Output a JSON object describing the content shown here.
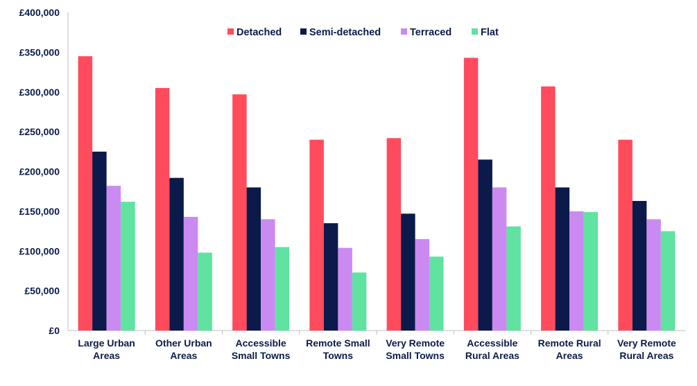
{
  "chart_data": {
    "type": "bar",
    "title": "",
    "xlabel": "",
    "ylabel": "",
    "ylim": [
      0,
      400000
    ],
    "yticks": [
      0,
      50000,
      100000,
      150000,
      200000,
      250000,
      300000,
      350000,
      400000
    ],
    "ytick_labels": [
      "£0",
      "£50,000",
      "£100,000",
      "£150,000",
      "£200,000",
      "£250,000",
      "£300,000",
      "£350,000",
      "£400,000"
    ],
    "grid": false,
    "legend_position": "top",
    "categories": [
      [
        "Large Urban",
        "Areas"
      ],
      [
        "Other Urban",
        "Areas"
      ],
      [
        "Accessible",
        "Small Towns"
      ],
      [
        "Remote Small",
        "Towns"
      ],
      [
        "Very Remote",
        "Small Towns"
      ],
      [
        "Accessible",
        "Rural Areas"
      ],
      [
        "Remote Rural",
        "Areas"
      ],
      [
        "Very Remote",
        "Rural Areas"
      ]
    ],
    "series": [
      {
        "name": "Detached",
        "color": "#ff4b5c",
        "values": [
          345000,
          305000,
          297000,
          240000,
          242000,
          343000,
          307000,
          240000
        ]
      },
      {
        "name": "Semi-detached",
        "color": "#0b1a4a",
        "values": [
          225000,
          192000,
          180000,
          135000,
          147000,
          215000,
          180000,
          163000
        ]
      },
      {
        "name": "Terraced",
        "color": "#cb8af2",
        "values": [
          182000,
          143000,
          140000,
          104000,
          115000,
          180000,
          150000,
          140000
        ]
      },
      {
        "name": "Flat",
        "color": "#60e3a1",
        "values": [
          162000,
          98000,
          105000,
          73000,
          93000,
          131000,
          149000,
          125000
        ]
      }
    ]
  }
}
